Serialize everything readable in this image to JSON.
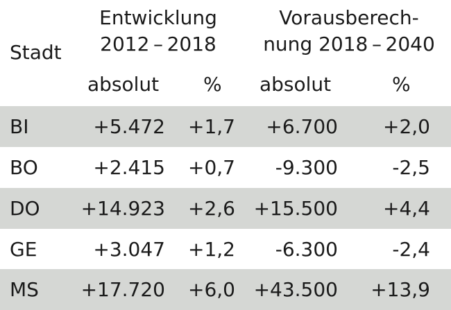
{
  "header": {
    "city": "Stadt",
    "group1": [
      "Entwicklung",
      "2012 – 2018"
    ],
    "group2": [
      "Vorausberech-",
      "nung 2018 – 2040"
    ],
    "sub_abs1": "absolut",
    "sub_pct1": "%",
    "sub_abs2": "absolut",
    "sub_pct2": "%"
  },
  "rows": [
    {
      "city": "BI",
      "abs1": "+5.472",
      "pct1": "+1,7",
      "abs2": "+6.700",
      "pct2": "+2,0"
    },
    {
      "city": "BO",
      "abs1": "+2.415",
      "pct1": "+0,7",
      "abs2": "-9.300",
      "pct2": "-2,5"
    },
    {
      "city": "DO",
      "abs1": "+14.923",
      "pct1": "+2,6",
      "abs2": "+15.500",
      "pct2": "+4,4"
    },
    {
      "city": "GE",
      "abs1": "+3.047",
      "pct1": "+1,2",
      "abs2": "-6.300",
      "pct2": "-2,4"
    },
    {
      "city": "MS",
      "abs1": "+17.720",
      "pct1": "+6,0",
      "abs2": "+43.500",
      "pct2": "+13,9"
    }
  ],
  "colors": {
    "shaded_row": "#d5d7d4",
    "text": "#1a1a1a"
  }
}
